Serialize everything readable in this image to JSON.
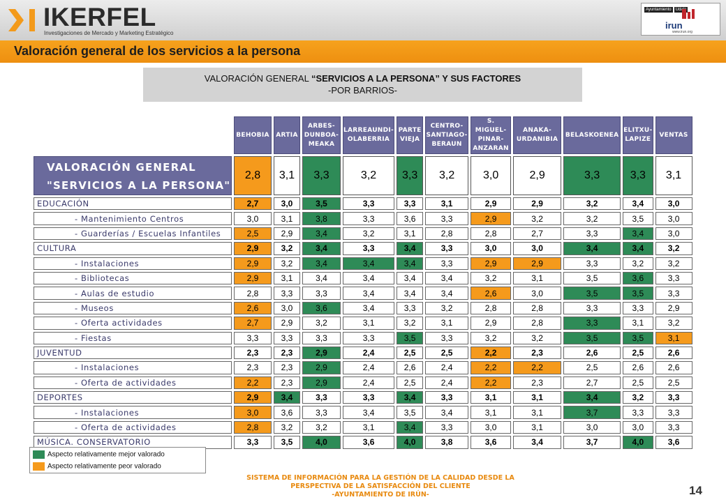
{
  "header": {
    "logo_text": "IKERFEL",
    "logo_tagline": "Investigaciones de Mercado y Marketing Estratégico",
    "partner_logo": {
      "top_left": "Ayuntamiento",
      "top_right": "Udala",
      "word": "irun",
      "url": "www.irun.org"
    }
  },
  "title": "Valoración general de los servicios a la persona",
  "subtitle": {
    "line1_pre": "VALORACIÓN GENERAL ",
    "line1_bold": "“SERVICIOS A LA PERSONA” Y SUS FACTORES",
    "line2": "-POR BARRIOS-"
  },
  "colors": {
    "green": "#2e8b57",
    "orange": "#f59a1c",
    "header_purple": "#6a6a9c",
    "title_orange": "#f39a1b"
  },
  "table": {
    "columns": [
      [
        "BEHOBIA"
      ],
      [
        "ARTIA"
      ],
      [
        "ARBES-",
        "DUNBOA-",
        "MEAKA"
      ],
      [
        "LARREAUNDI-",
        "OLABERRIA"
      ],
      [
        "PARTE",
        "VIEJA"
      ],
      [
        "CENTRO-",
        "SANTIAGO-",
        "BERAUN"
      ],
      [
        "S. MIGUEL-",
        "PINAR-",
        "ANZARAN"
      ],
      [
        "ANAKA-",
        "URDANIBIA"
      ],
      [
        "BELASKOENEA"
      ],
      [
        "ELITXU-",
        "LAPIZE"
      ],
      [
        "VENTAS"
      ]
    ],
    "main_row": {
      "label_line1": "VALORACIÓN GENERAL",
      "label_line2": "\"SERVICIOS A LA PERSONA\"",
      "values": [
        "2,8",
        "3,1",
        "3,3",
        "3,2",
        "3,3",
        "3,2",
        "3,0",
        "2,9",
        "3,3",
        "3,3",
        "3,1"
      ],
      "marks": [
        "o",
        "",
        "g",
        "",
        "g",
        "",
        "",
        "",
        "g",
        "g",
        ""
      ]
    },
    "rows": [
      {
        "label": "EDUCACIÓN",
        "type": "cat",
        "values": [
          "2,7",
          "3,0",
          "3,5",
          "3,3",
          "3,3",
          "3,1",
          "2,9",
          "2,9",
          "3,2",
          "3,4",
          "3,0"
        ],
        "marks": [
          "o",
          "",
          "g",
          "",
          "",
          "",
          "",
          "",
          "",
          "",
          ""
        ]
      },
      {
        "label": "- Mantenimiento Centros",
        "type": "sub",
        "values": [
          "3,0",
          "3,1",
          "3,8",
          "3,3",
          "3,6",
          "3,3",
          "2,9",
          "3,2",
          "3,2",
          "3,5",
          "3,0"
        ],
        "marks": [
          "",
          "",
          "g",
          "",
          "",
          "",
          "o",
          "",
          "",
          "",
          ""
        ]
      },
      {
        "label": "- Guarderías / Escuelas Infantiles",
        "type": "sub",
        "values": [
          "2,5",
          "2,9",
          "3,4",
          "3,2",
          "3,1",
          "2,8",
          "2,8",
          "2,7",
          "3,3",
          "3,4",
          "3,0"
        ],
        "marks": [
          "o",
          "",
          "g",
          "",
          "",
          "",
          "",
          "",
          "",
          "g",
          ""
        ]
      },
      {
        "label": "CULTURA",
        "type": "cat",
        "values": [
          "2,9",
          "3,2",
          "3,4",
          "3,3",
          "3,4",
          "3,3",
          "3,0",
          "3,0",
          "3,4",
          "3,4",
          "3,2"
        ],
        "marks": [
          "o",
          "",
          "g",
          "",
          "g",
          "",
          "",
          "",
          "g",
          "g",
          ""
        ]
      },
      {
        "label": "- Instalaciones",
        "type": "sub",
        "values": [
          "2,9",
          "3,2",
          "3,4",
          "3,4",
          "3,4",
          "3,3",
          "2,9",
          "2,9",
          "3,3",
          "3,2",
          "3,2"
        ],
        "marks": [
          "o",
          "",
          "g",
          "g",
          "g",
          "",
          "o",
          "o",
          "",
          "",
          ""
        ]
      },
      {
        "label": "- Bibliotecas",
        "type": "sub",
        "values": [
          "2,9",
          "3,1",
          "3,4",
          "3,4",
          "3,4",
          "3,4",
          "3,2",
          "3,1",
          "3,5",
          "3,6",
          "3,3"
        ],
        "marks": [
          "o",
          "",
          "",
          "",
          "",
          "",
          "",
          "",
          "",
          "g",
          ""
        ]
      },
      {
        "label": "- Aulas de estudio",
        "type": "sub",
        "values": [
          "2,8",
          "3,3",
          "3,3",
          "3,4",
          "3,4",
          "3,4",
          "2,6",
          "3,0",
          "3,5",
          "3,5",
          "3,3"
        ],
        "marks": [
          "",
          "",
          "",
          "",
          "",
          "",
          "o",
          "",
          "g",
          "g",
          ""
        ]
      },
      {
        "label": "- Museos",
        "type": "sub",
        "values": [
          "2,6",
          "3,0",
          "3,6",
          "3,4",
          "3,3",
          "3,2",
          "2,8",
          "2,8",
          "3,3",
          "3,3",
          "2,9"
        ],
        "marks": [
          "o",
          "",
          "g",
          "",
          "",
          "",
          "",
          "",
          "",
          "",
          ""
        ]
      },
      {
        "label": "- Oferta actividades",
        "type": "sub",
        "values": [
          "2,7",
          "2,9",
          "3,2",
          "3,1",
          "3,2",
          "3,1",
          "2,9",
          "2,8",
          "3,3",
          "3,1",
          "3,2"
        ],
        "marks": [
          "o",
          "",
          "",
          "",
          "",
          "",
          "",
          "",
          "g",
          "",
          ""
        ]
      },
      {
        "label": "- Fiestas",
        "type": "sub",
        "values": [
          "3,3",
          "3,3",
          "3,3",
          "3,3",
          "3,5",
          "3,3",
          "3,2",
          "3,2",
          "3,5",
          "3,5",
          "3,1"
        ],
        "marks": [
          "",
          "",
          "",
          "",
          "g",
          "",
          "",
          "",
          "g",
          "g",
          "o"
        ]
      },
      {
        "label": "JUVENTUD",
        "type": "cat",
        "values": [
          "2,3",
          "2,3",
          "2,9",
          "2,4",
          "2,5",
          "2,5",
          "2,2",
          "2,3",
          "2,6",
          "2,5",
          "2,6"
        ],
        "marks": [
          "",
          "",
          "g",
          "",
          "",
          "",
          "o",
          "",
          "",
          "",
          ""
        ]
      },
      {
        "label": "- Instalaciones",
        "type": "sub",
        "values": [
          "2,3",
          "2,3",
          "2,9",
          "2,4",
          "2,6",
          "2,4",
          "2,2",
          "2,2",
          "2,5",
          "2,6",
          "2,6"
        ],
        "marks": [
          "",
          "",
          "g",
          "",
          "",
          "",
          "o",
          "o",
          "",
          "",
          ""
        ]
      },
      {
        "label": "- Oferta de actividades",
        "type": "sub",
        "values": [
          "2,2",
          "2,3",
          "2,9",
          "2,4",
          "2,5",
          "2,4",
          "2,2",
          "2,3",
          "2,7",
          "2,5",
          "2,5"
        ],
        "marks": [
          "o",
          "",
          "g",
          "",
          "",
          "",
          "o",
          "",
          "",
          "",
          ""
        ]
      },
      {
        "label": "DEPORTES",
        "type": "cat",
        "values": [
          "2,9",
          "3,4",
          "3,3",
          "3,3",
          "3,4",
          "3,3",
          "3,1",
          "3,1",
          "3,4",
          "3,2",
          "3,3"
        ],
        "marks": [
          "o",
          "g",
          "",
          "",
          "g",
          "",
          "",
          "",
          "g",
          "",
          ""
        ]
      },
      {
        "label": "- Instalaciones",
        "type": "sub",
        "values": [
          "3,0",
          "3,6",
          "3,3",
          "3,4",
          "3,5",
          "3,4",
          "3,1",
          "3,1",
          "3,7",
          "3,3",
          "3,3"
        ],
        "marks": [
          "o",
          "",
          "",
          "",
          "",
          "",
          "",
          "",
          "g",
          "",
          ""
        ]
      },
      {
        "label": "- Oferta de actividades",
        "type": "sub",
        "values": [
          "2,8",
          "3,2",
          "3,2",
          "3,1",
          "3,4",
          "3,3",
          "3,0",
          "3,1",
          "3,0",
          "3,0",
          "3,3"
        ],
        "marks": [
          "o",
          "",
          "",
          "",
          "g",
          "",
          "",
          "",
          "",
          "",
          ""
        ]
      },
      {
        "label": "MÚSICA. CONSERVATORIO",
        "type": "cat",
        "values": [
          "3,3",
          "3,5",
          "4,0",
          "3,6",
          "4,0",
          "3,8",
          "3,6",
          "3,4",
          "3,7",
          "4,0",
          "3,6"
        ],
        "marks": [
          "",
          "",
          "g",
          "",
          "g",
          "",
          "",
          "",
          "",
          "g",
          ""
        ]
      }
    ]
  },
  "legend": {
    "better": "Aspecto relativamente mejor valorado",
    "worse": "Aspecto relativamente peor valorado"
  },
  "footer": {
    "line1": "SISTEMA DE INFORMACIÓN PARA LA GESTIÓN DE LA CALIDAD DESDE LA",
    "line2": "PERSPECTIVA DE LA SATISFACCIÓN DEL CLIENTE",
    "line3": "-AYUNTAMIENTO DE IRÚN-"
  },
  "page_number": "14"
}
